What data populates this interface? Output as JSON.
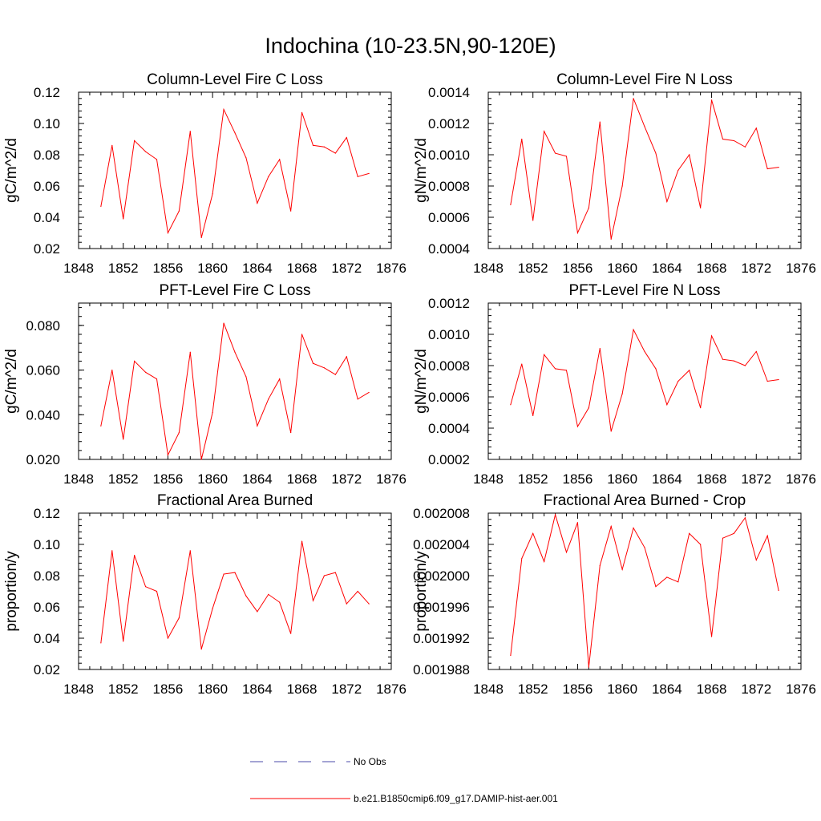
{
  "figure": {
    "title": "Indochina (10-23.5N,90-120E)"
  },
  "legend": {
    "entries": [
      {
        "label": "No Obs",
        "color": "#4a4aa8",
        "style": "dashed"
      },
      {
        "label": "b.e21.B1850cmip6.f09_g17.DAMIP-hist-aer.001",
        "color": "#ff0000",
        "style": "solid"
      }
    ]
  },
  "chart_data": [
    {
      "type": "line",
      "title": "Column-Level Fire C Loss",
      "ylabel": "gC/m^2/d",
      "xlabel": "",
      "xlim": [
        1848,
        1876
      ],
      "ylim": [
        0.02,
        0.12
      ],
      "xticks": [
        "1848",
        "1852",
        "1856",
        "1860",
        "1864",
        "1868",
        "1872",
        "1876"
      ],
      "yticks": [
        "0.02",
        "0.04",
        "0.06",
        "0.08",
        "0.10",
        "0.12"
      ],
      "x": [
        1850,
        1851,
        1852,
        1853,
        1854,
        1855,
        1856,
        1857,
        1858,
        1859,
        1860,
        1861,
        1862,
        1863,
        1864,
        1865,
        1866,
        1867,
        1868,
        1869,
        1870,
        1871,
        1872,
        1873,
        1874
      ],
      "series": [
        {
          "color": "#ff0000",
          "values": [
            0.047,
            0.086,
            0.039,
            0.089,
            0.082,
            0.077,
            0.03,
            0.044,
            0.095,
            0.027,
            0.055,
            0.109,
            0.094,
            0.078,
            0.049,
            0.066,
            0.077,
            0.044,
            0.107,
            0.086,
            0.085,
            0.081,
            0.091,
            0.066,
            0.068
          ]
        }
      ],
      "grid": false
    },
    {
      "type": "line",
      "title": "Column-Level Fire N Loss",
      "ylabel": "gN/m^2/d",
      "xlabel": "",
      "xlim": [
        1848,
        1876
      ],
      "ylim": [
        0.0004,
        0.0014
      ],
      "xticks": [
        "1848",
        "1852",
        "1856",
        "1860",
        "1864",
        "1868",
        "1872",
        "1876"
      ],
      "yticks": [
        "0.0004",
        "0.0006",
        "0.0008",
        "0.0010",
        "0.0012",
        "0.0014"
      ],
      "x": [
        1850,
        1851,
        1852,
        1853,
        1854,
        1855,
        1856,
        1857,
        1858,
        1859,
        1860,
        1861,
        1862,
        1863,
        1864,
        1865,
        1866,
        1867,
        1868,
        1869,
        1870,
        1871,
        1872,
        1873,
        1874
      ],
      "series": [
        {
          "color": "#ff0000",
          "values": [
            0.00068,
            0.0011,
            0.00058,
            0.00115,
            0.00101,
            0.00099,
            0.0005,
            0.00066,
            0.00121,
            0.00046,
            0.0008,
            0.00136,
            0.00118,
            0.00101,
            0.0007,
            0.0009,
            0.001,
            0.00066,
            0.00135,
            0.0011,
            0.00109,
            0.00105,
            0.00117,
            0.00091,
            0.00092
          ]
        }
      ],
      "grid": false
    },
    {
      "type": "line",
      "title": "PFT-Level Fire C Loss",
      "ylabel": "gC/m^2/d",
      "xlabel": "",
      "xlim": [
        1848,
        1876
      ],
      "ylim": [
        0.02,
        0.09
      ],
      "xticks": [
        "1848",
        "1852",
        "1856",
        "1860",
        "1864",
        "1868",
        "1872",
        "1876"
      ],
      "yticks": [
        "0.020",
        "0.040",
        "0.060",
        "0.080"
      ],
      "ytick_values": [
        0.02,
        0.04,
        0.06,
        0.08
      ],
      "x": [
        1850,
        1851,
        1852,
        1853,
        1854,
        1855,
        1856,
        1857,
        1858,
        1859,
        1860,
        1861,
        1862,
        1863,
        1864,
        1865,
        1866,
        1867,
        1868,
        1869,
        1870,
        1871,
        1872,
        1873,
        1874
      ],
      "series": [
        {
          "color": "#ff0000",
          "values": [
            0.035,
            0.06,
            0.029,
            0.064,
            0.059,
            0.056,
            0.022,
            0.032,
            0.068,
            0.02,
            0.041,
            0.081,
            0.068,
            0.057,
            0.035,
            0.047,
            0.056,
            0.032,
            0.076,
            0.063,
            0.061,
            0.058,
            0.066,
            0.047,
            0.05
          ]
        }
      ],
      "grid": false
    },
    {
      "type": "line",
      "title": "PFT-Level Fire N Loss",
      "ylabel": "gN/m^2/d",
      "xlabel": "",
      "xlim": [
        1848,
        1876
      ],
      "ylim": [
        0.0002,
        0.0012
      ],
      "xticks": [
        "1848",
        "1852",
        "1856",
        "1860",
        "1864",
        "1868",
        "1872",
        "1876"
      ],
      "yticks": [
        "0.0002",
        "0.0004",
        "0.0006",
        "0.0008",
        "0.0010",
        "0.0012"
      ],
      "x": [
        1850,
        1851,
        1852,
        1853,
        1854,
        1855,
        1856,
        1857,
        1858,
        1859,
        1860,
        1861,
        1862,
        1863,
        1864,
        1865,
        1866,
        1867,
        1868,
        1869,
        1870,
        1871,
        1872,
        1873,
        1874
      ],
      "series": [
        {
          "color": "#ff0000",
          "values": [
            0.00055,
            0.00081,
            0.00048,
            0.00087,
            0.00078,
            0.00077,
            0.00041,
            0.00053,
            0.00091,
            0.00038,
            0.00062,
            0.00103,
            0.00089,
            0.00078,
            0.00055,
            0.0007,
            0.00077,
            0.00053,
            0.00099,
            0.00084,
            0.00083,
            0.0008,
            0.00089,
            0.0007,
            0.00071
          ]
        }
      ],
      "grid": false
    },
    {
      "type": "line",
      "title": "Fractional Area Burned",
      "ylabel": "proportion/y",
      "xlabel": "",
      "xlim": [
        1848,
        1876
      ],
      "ylim": [
        0.02,
        0.12
      ],
      "xticks": [
        "1848",
        "1852",
        "1856",
        "1860",
        "1864",
        "1868",
        "1872",
        "1876"
      ],
      "yticks": [
        "0.02",
        "0.04",
        "0.06",
        "0.08",
        "0.10",
        "0.12"
      ],
      "x": [
        1850,
        1851,
        1852,
        1853,
        1854,
        1855,
        1856,
        1857,
        1858,
        1859,
        1860,
        1861,
        1862,
        1863,
        1864,
        1865,
        1866,
        1867,
        1868,
        1869,
        1870,
        1871,
        1872,
        1873,
        1874
      ],
      "series": [
        {
          "color": "#ff0000",
          "values": [
            0.037,
            0.096,
            0.038,
            0.093,
            0.073,
            0.07,
            0.04,
            0.053,
            0.096,
            0.033,
            0.059,
            0.081,
            0.082,
            0.067,
            0.057,
            0.068,
            0.063,
            0.043,
            0.102,
            0.064,
            0.08,
            0.082,
            0.062,
            0.07,
            0.062
          ]
        }
      ],
      "grid": false
    },
    {
      "type": "line",
      "title": "Fractional Area Burned - Crop",
      "ylabel": "proportion/y",
      "xlabel": "",
      "xlim": [
        1848,
        1876
      ],
      "ylim": [
        0.001988,
        0.002008
      ],
      "xticks": [
        "1848",
        "1852",
        "1856",
        "1860",
        "1864",
        "1868",
        "1872",
        "1876"
      ],
      "yticks": [
        "0.001988",
        "0.001992",
        "0.001996",
        "0.002000",
        "0.002004",
        "0.002008"
      ],
      "x": [
        1850,
        1851,
        1852,
        1853,
        1854,
        1855,
        1856,
        1857,
        1858,
        1859,
        1860,
        1861,
        1862,
        1863,
        1864,
        1865,
        1866,
        1867,
        1868,
        1869,
        1870,
        1871,
        1872,
        1873,
        1874
      ],
      "series": [
        {
          "color": "#ff0000",
          "values": [
            0.0019898,
            0.0020022,
            0.0020054,
            0.0020018,
            0.0020078,
            0.002003,
            0.0020068,
            0.0019883,
            0.0020013,
            0.0020063,
            0.0020008,
            0.0020061,
            0.0020036,
            0.0019986,
            0.0019998,
            0.0019992,
            0.0020054,
            0.002004,
            0.0019922,
            0.0020048,
            0.0020054,
            0.0020074,
            0.002002,
            0.0020051,
            0.0019981
          ]
        }
      ],
      "grid": false
    }
  ]
}
